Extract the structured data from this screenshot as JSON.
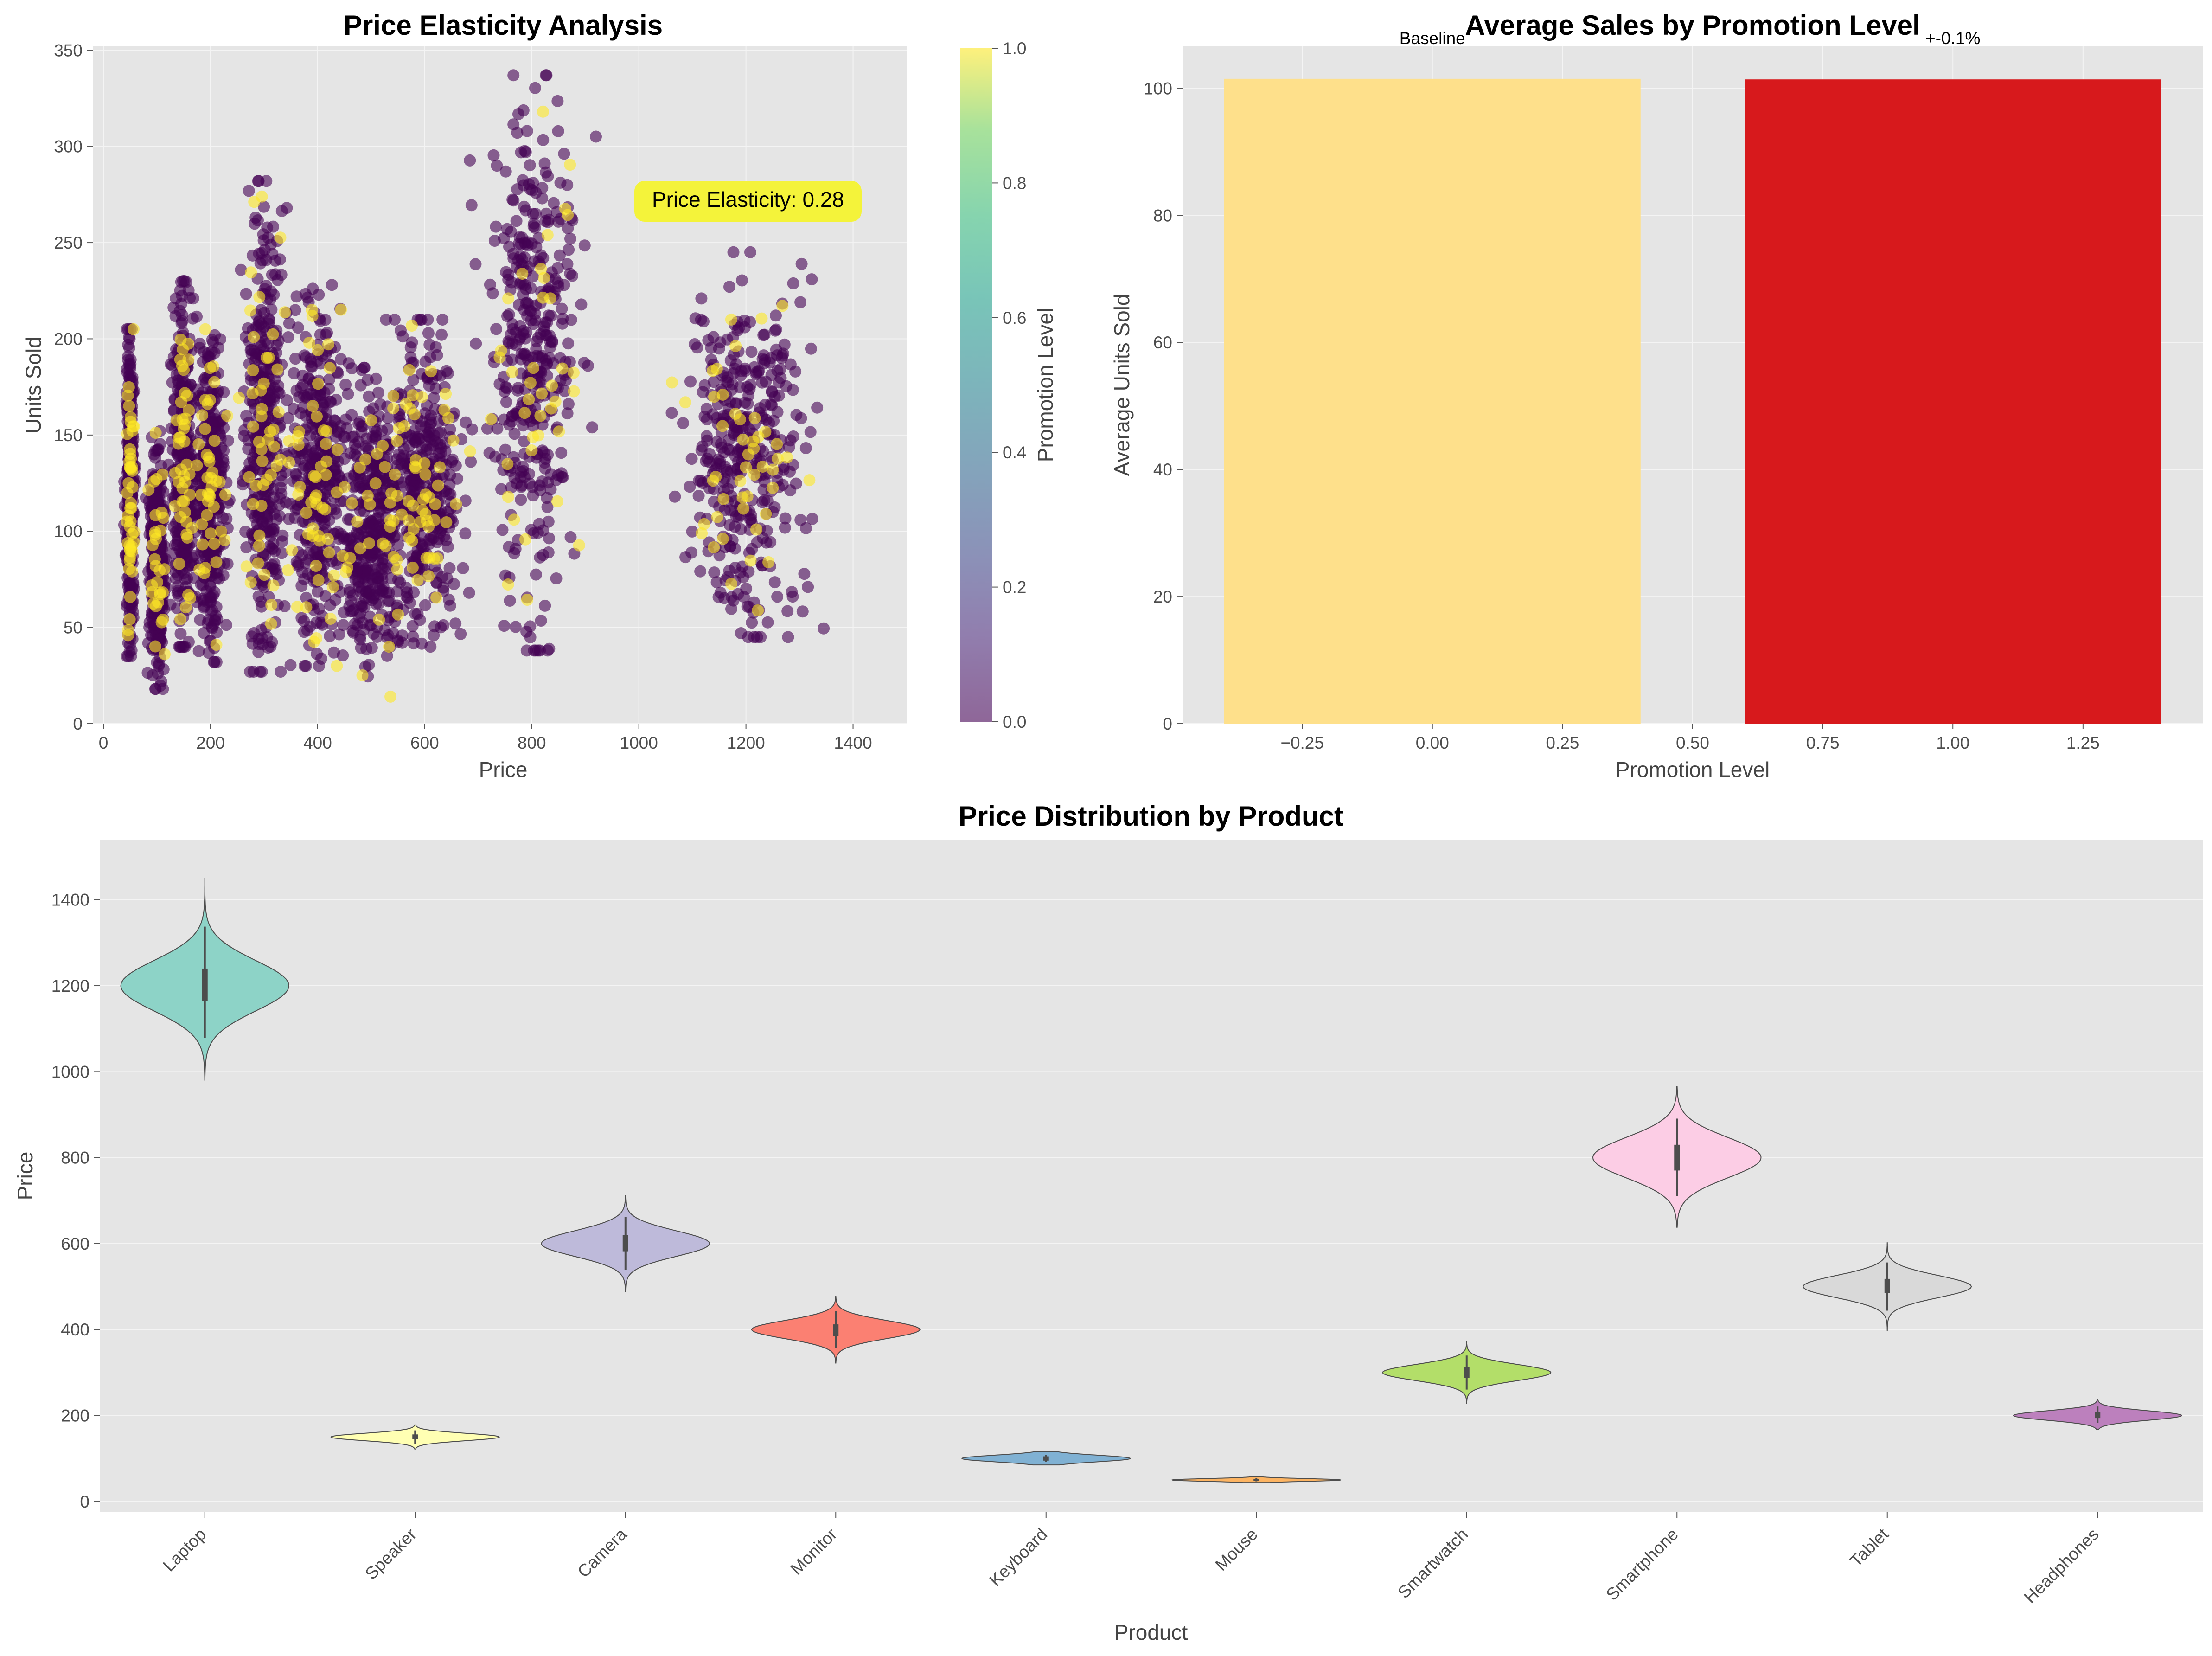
{
  "chart_data": [
    {
      "type": "scatter",
      "title": "Price Elasticity Analysis",
      "xlabel": "Price",
      "ylabel": "Units Sold",
      "xlim": [
        -20,
        1500
      ],
      "ylim": [
        0,
        352
      ],
      "xticks": [
        0,
        200,
        400,
        600,
        800,
        1000,
        1200,
        1400
      ],
      "yticks": [
        0,
        50,
        100,
        150,
        200,
        250,
        300,
        350
      ],
      "grid": true,
      "annotation": "Price Elasticity: 0.28",
      "annotation_color": "#f4f33a",
      "colorbar": {
        "label": "Promotion Level",
        "range": [
          0,
          1
        ],
        "ticks": [
          "0.0",
          "0.2",
          "0.4",
          "0.6",
          "0.8",
          "1.0"
        ],
        "colormap": "viridis"
      },
      "clusters": [
        {
          "product": "Mouse",
          "price_center": 50,
          "price_spread": 6,
          "units_min": 35,
          "units_max": 205
        },
        {
          "product": "Keyboard",
          "price_center": 100,
          "price_spread": 12,
          "units_min": 18,
          "units_max": 152
        },
        {
          "product": "Speaker",
          "price_center": 150,
          "price_spread": 18,
          "units_min": 40,
          "units_max": 230
        },
        {
          "product": "Headphones",
          "price_center": 200,
          "price_spread": 22,
          "units_min": 32,
          "units_max": 205
        },
        {
          "product": "Smartwatch",
          "price_center": 300,
          "price_spread": 35,
          "units_min": 27,
          "units_max": 282
        },
        {
          "product": "Monitor",
          "price_center": 400,
          "price_spread": 45,
          "units_min": 30,
          "units_max": 228
        },
        {
          "product": "Tablet",
          "price_center": 500,
          "price_spread": 55,
          "units_min": 14,
          "units_max": 185
        },
        {
          "product": "Camera",
          "price_center": 600,
          "price_spread": 60,
          "units_min": 40,
          "units_max": 210
        },
        {
          "product": "Smartphone",
          "price_center": 800,
          "price_spread": 70,
          "units_min": 38,
          "units_max": 337
        },
        {
          "product": "Laptop",
          "price_center": 1200,
          "price_spread": 100,
          "units_min": 45,
          "units_max": 245
        }
      ]
    },
    {
      "type": "bar",
      "title": "Average Sales by Promotion Level",
      "xlabel": "Promotion Level",
      "ylabel": "Average Units Sold",
      "x": [
        0,
        1
      ],
      "values": [
        101.5,
        101.4
      ],
      "bar_width": 0.8,
      "colors": [
        "#fee08b",
        "#d7191c"
      ],
      "bar_labels": [
        "Baseline",
        "+-0.1%"
      ],
      "xlim": [
        -0.48,
        1.48
      ],
      "ylim": [
        0,
        106.6
      ],
      "xticks": [
        "-0.25",
        "0.00",
        "0.25",
        "0.50",
        "0.75",
        "1.00",
        "1.25"
      ],
      "yticks": [
        0,
        20,
        40,
        60,
        80,
        100
      ],
      "grid": true
    },
    {
      "type": "violin",
      "title": "Price Distribution by Product",
      "xlabel": "Product",
      "ylabel": "Price",
      "categories": [
        "Laptop",
        "Speaker",
        "Camera",
        "Monitor",
        "Keyboard",
        "Mouse",
        "Smartwatch",
        "Smartphone",
        "Tablet",
        "Headphones"
      ],
      "series": [
        {
          "name": "Laptop",
          "median": 1200,
          "q1": 1165,
          "q3": 1240,
          "min": 980,
          "max": 1450,
          "color": "#8dd3c7"
        },
        {
          "name": "Speaker",
          "median": 150,
          "q1": 145,
          "q3": 156,
          "min": 122,
          "max": 178,
          "color": "#ffffb3"
        },
        {
          "name": "Camera",
          "median": 600,
          "q1": 582,
          "q3": 620,
          "min": 488,
          "max": 712,
          "color": "#bebada"
        },
        {
          "name": "Monitor",
          "median": 400,
          "q1": 385,
          "q3": 412,
          "min": 322,
          "max": 478,
          "color": "#fb8072"
        },
        {
          "name": "Keyboard",
          "median": 100,
          "q1": 95,
          "q3": 105,
          "min": 85,
          "max": 116,
          "color": "#80b1d3"
        },
        {
          "name": "Mouse",
          "median": 50,
          "q1": 48,
          "q3": 52,
          "min": 44,
          "max": 57,
          "color": "#fdb462"
        },
        {
          "name": "Smartwatch",
          "median": 300,
          "q1": 288,
          "q3": 312,
          "min": 228,
          "max": 372,
          "color": "#b3de69"
        },
        {
          "name": "Smartphone",
          "median": 800,
          "q1": 770,
          "q3": 830,
          "min": 638,
          "max": 965,
          "color": "#fccde5"
        },
        {
          "name": "Tablet",
          "median": 500,
          "q1": 485,
          "q3": 518,
          "min": 398,
          "max": 602,
          "color": "#d9d9d9"
        },
        {
          "name": "Headphones",
          "median": 200,
          "q1": 194,
          "q3": 208,
          "min": 168,
          "max": 238,
          "color": "#bc80bd"
        }
      ],
      "ylim": [
        -25,
        1540
      ],
      "yticks": [
        0,
        200,
        400,
        600,
        800,
        1000,
        1200,
        1400
      ],
      "grid": true
    }
  ]
}
